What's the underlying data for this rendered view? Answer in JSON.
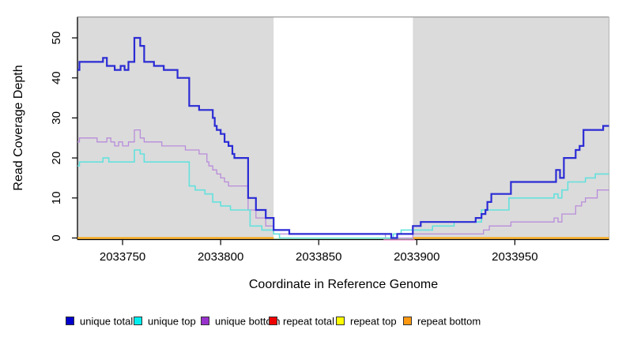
{
  "chart_data": {
    "type": "line",
    "style": "step",
    "xlabel": "Coordinate in Reference Genome",
    "ylabel": "Read Coverage Depth",
    "xlim": [
      2033727,
      2033998
    ],
    "ylim": [
      0,
      52
    ],
    "x_ticks": [
      2033750,
      2033800,
      2033850,
      2033900,
      2033950
    ],
    "y_ticks": [
      0,
      10,
      20,
      30,
      40,
      50
    ],
    "panel_background": "#DBDBDB",
    "unshaded_region": {
      "x_start": 2033827,
      "x_end": 2033898,
      "color": "#FFFFFF"
    },
    "series": [
      {
        "name": "unique total",
        "line_color": "#2B2BD5",
        "points": [
          [
            2033727,
            42
          ],
          [
            2033728,
            44
          ],
          [
            2033740,
            45
          ],
          [
            2033742,
            43
          ],
          [
            2033746,
            42
          ],
          [
            2033749,
            43
          ],
          [
            2033751,
            42
          ],
          [
            2033753,
            44
          ],
          [
            2033756,
            50
          ],
          [
            2033759,
            48
          ],
          [
            2033761,
            44
          ],
          [
            2033766,
            43
          ],
          [
            2033771,
            42
          ],
          [
            2033778,
            40
          ],
          [
            2033784,
            33
          ],
          [
            2033789,
            32
          ],
          [
            2033796,
            30
          ],
          [
            2033797,
            28
          ],
          [
            2033798,
            27
          ],
          [
            2033800,
            26
          ],
          [
            2033802,
            24
          ],
          [
            2033804,
            23
          ],
          [
            2033806,
            21
          ],
          [
            2033807,
            20
          ],
          [
            2033814,
            10
          ],
          [
            2033818,
            7
          ],
          [
            2033823,
            5
          ],
          [
            2033827,
            2
          ],
          [
            2033835,
            1
          ],
          [
            2033887,
            0
          ],
          [
            2033890,
            1
          ],
          [
            2033898,
            3
          ],
          [
            2033902,
            4
          ],
          [
            2033930,
            5
          ],
          [
            2033933,
            6
          ],
          [
            2033935,
            7
          ],
          [
            2033936,
            9
          ],
          [
            2033938,
            11
          ],
          [
            2033948,
            14
          ],
          [
            2033971,
            17
          ],
          [
            2033973,
            15
          ],
          [
            2033975,
            20
          ],
          [
            2033981,
            22
          ],
          [
            2033983,
            23
          ],
          [
            2033985,
            27
          ],
          [
            2033995,
            28
          ]
        ]
      },
      {
        "name": "unique top",
        "line_color": "#63E1DC",
        "points": [
          [
            2033727,
            18
          ],
          [
            2033728,
            19
          ],
          [
            2033740,
            20
          ],
          [
            2033743,
            19
          ],
          [
            2033756,
            22
          ],
          [
            2033759,
            21
          ],
          [
            2033761,
            19
          ],
          [
            2033784,
            13
          ],
          [
            2033787,
            12
          ],
          [
            2033792,
            11
          ],
          [
            2033796,
            9
          ],
          [
            2033800,
            8
          ],
          [
            2033805,
            7
          ],
          [
            2033815,
            3
          ],
          [
            2033821,
            2
          ],
          [
            2033827,
            1
          ],
          [
            2033830,
            0
          ],
          [
            2033888,
            1
          ],
          [
            2033892,
            2
          ],
          [
            2033908,
            3
          ],
          [
            2033919,
            4
          ],
          [
            2033933,
            7
          ],
          [
            2033947,
            10
          ],
          [
            2033970,
            11
          ],
          [
            2033972,
            10
          ],
          [
            2033974,
            12
          ],
          [
            2033977,
            14
          ],
          [
            2033986,
            15
          ],
          [
            2033991,
            16
          ]
        ]
      },
      {
        "name": "unique bottom",
        "line_color": "#B98CDB",
        "points": [
          [
            2033727,
            24
          ],
          [
            2033728,
            25
          ],
          [
            2033737,
            24
          ],
          [
            2033742,
            25
          ],
          [
            2033744,
            24
          ],
          [
            2033746,
            23
          ],
          [
            2033748,
            24
          ],
          [
            2033750,
            23
          ],
          [
            2033753,
            24
          ],
          [
            2033756,
            27
          ],
          [
            2033759,
            25
          ],
          [
            2033761,
            24
          ],
          [
            2033770,
            23
          ],
          [
            2033782,
            22
          ],
          [
            2033789,
            21
          ],
          [
            2033793,
            19
          ],
          [
            2033794,
            18
          ],
          [
            2033796,
            17
          ],
          [
            2033798,
            16
          ],
          [
            2033800,
            15
          ],
          [
            2033802,
            14
          ],
          [
            2033804,
            13
          ],
          [
            2033814,
            7
          ],
          [
            2033818,
            5
          ],
          [
            2033823,
            3
          ],
          [
            2033827,
            1
          ],
          [
            2033884,
            0
          ],
          [
            2033898,
            1
          ],
          [
            2033934,
            2
          ],
          [
            2033937,
            3
          ],
          [
            2033948,
            4
          ],
          [
            2033970,
            5
          ],
          [
            2033972,
            4
          ],
          [
            2033974,
            6
          ],
          [
            2033981,
            8
          ],
          [
            2033984,
            9
          ],
          [
            2033986,
            10
          ],
          [
            2033992,
            12
          ]
        ]
      },
      {
        "name": "repeat total",
        "line_color": "#EE0000",
        "points": [
          [
            2033727,
            0
          ]
        ]
      },
      {
        "name": "repeat top",
        "line_color": "#FFFF00",
        "points": [
          [
            2033727,
            0
          ]
        ]
      },
      {
        "name": "repeat bottom",
        "line_color": "#FFA500",
        "points": [
          [
            2033727,
            0
          ]
        ]
      }
    ],
    "baseline_artifacts": [
      {
        "color": "#A5D6A1",
        "x_start": 2033827,
        "x_end": 2033898,
        "note": "pale green zero-line inside unshaded band"
      },
      {
        "color": "#E988C8",
        "x_start": 2033883,
        "x_end": 2033899,
        "note": "pink zero-line segment near right edge of unshaded band"
      }
    ]
  },
  "axes": {
    "x_label": "Coordinate in Reference Genome",
    "y_label": "Read Coverage Depth"
  },
  "legend": {
    "position": "bottom",
    "items": [
      {
        "label": "unique total",
        "color": "#0000CD"
      },
      {
        "label": "unique top",
        "color": "#00EEEE"
      },
      {
        "label": "unique bottom",
        "color": "#9932CC"
      },
      {
        "label": "repeat total",
        "color": "#EE0000"
      },
      {
        "label": "repeat top",
        "color": "#FFFF00"
      },
      {
        "label": "repeat bottom",
        "color": "#FF9912"
      }
    ]
  }
}
